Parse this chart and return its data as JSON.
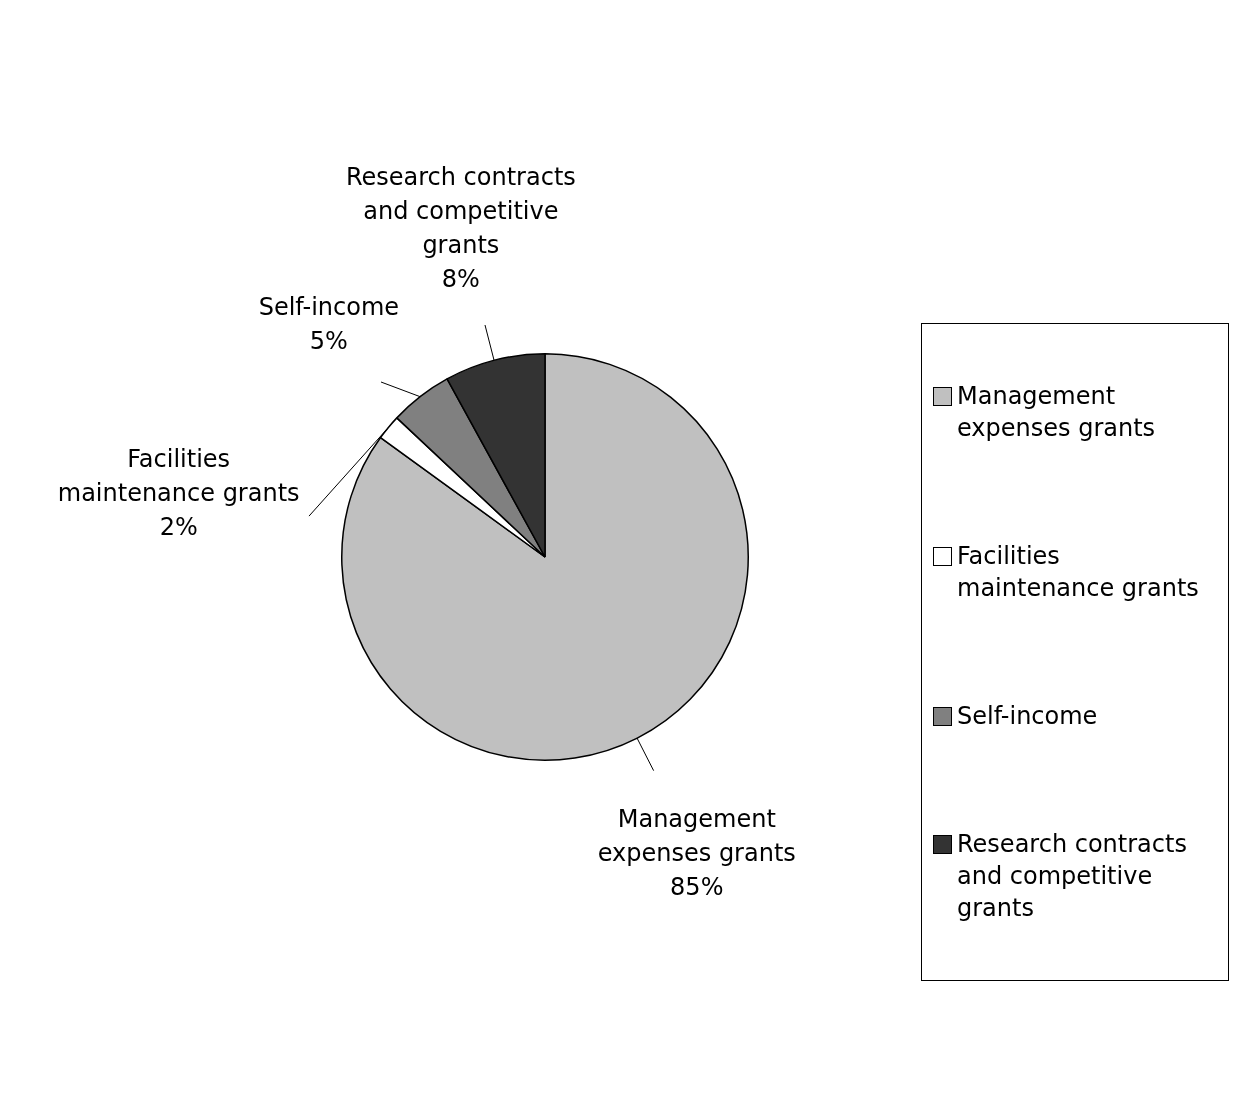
{
  "chart_data": {
    "type": "pie",
    "categories": [
      "Management expenses grants",
      "Facilities maintenance grants",
      "Self-income",
      "Research contracts and competitive grants"
    ],
    "values": [
      85,
      2,
      5,
      8
    ],
    "colors": [
      "#c0c0c0",
      "#ffffff",
      "#808080",
      "#333333"
    ],
    "value_labels": [
      "85%",
      "2%",
      "5%",
      "8%"
    ],
    "legend": "right"
  }
}
